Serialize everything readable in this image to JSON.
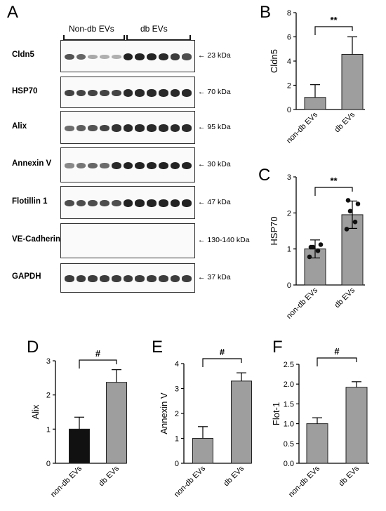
{
  "panel_letters": [
    "A",
    "B",
    "C",
    "D",
    "E",
    "F"
  ],
  "western_blot": {
    "group_labels": [
      "Non-db EVs",
      "db EVs"
    ],
    "rows": [
      {
        "label": "Cldn5",
        "kda": "23 kDa",
        "intensity": [
          0.65,
          0.55,
          0.15,
          0.1,
          0.1,
          0.95,
          0.95,
          0.95,
          0.9,
          0.8,
          0.7
        ]
      },
      {
        "label": "HSP70",
        "kda": "70 kDa",
        "intensity": [
          0.75,
          0.75,
          0.75,
          0.75,
          0.75,
          0.9,
          0.9,
          0.9,
          0.9,
          0.9,
          0.9
        ]
      },
      {
        "label": "Alix",
        "kda": "95 kDa",
        "intensity": [
          0.5,
          0.6,
          0.65,
          0.75,
          0.85,
          0.9,
          0.9,
          0.9,
          0.9,
          0.9,
          0.9
        ]
      },
      {
        "label": "Annexin V",
        "kda": "30 kDa",
        "intensity": [
          0.35,
          0.45,
          0.55,
          0.5,
          0.9,
          0.95,
          0.95,
          0.95,
          0.95,
          0.95,
          0.95
        ]
      },
      {
        "label": "Flotillin 1",
        "kda": "47 kDa",
        "intensity": [
          0.7,
          0.7,
          0.7,
          0.7,
          0.7,
          0.95,
          0.95,
          0.95,
          0.95,
          0.95,
          0.95
        ]
      },
      {
        "label": "VE-Cadherin",
        "kda": "130-140 kDa",
        "intensity": [
          0,
          0,
          0,
          0,
          0,
          0,
          0,
          0,
          0,
          0,
          0
        ]
      },
      {
        "label": "GAPDH",
        "kda": "37 kDa",
        "intensity": [
          0.8,
          0.8,
          0.8,
          0.8,
          0.8,
          0.8,
          0.8,
          0.8,
          0.8,
          0.8,
          0.8
        ]
      }
    ]
  },
  "colors": {
    "grey_bar": "#9e9e9e",
    "black_bar": "#111111",
    "dot": "#111111"
  },
  "chart_data": [
    {
      "panel": "B",
      "type": "bar",
      "categories": [
        "non-db EVs",
        "db EVs"
      ],
      "values": [
        1.0,
        4.55
      ],
      "errors": [
        1.05,
        1.45
      ],
      "colors": [
        "#9e9e9e",
        "#9e9e9e"
      ],
      "ylabel": "Cldn5",
      "ylim": [
        0,
        8
      ],
      "yticks": [
        "0",
        "2",
        "4",
        "6",
        "8"
      ],
      "significance": "**",
      "points": []
    },
    {
      "panel": "C",
      "type": "bar",
      "categories": [
        "non-db EVs",
        "db EVs"
      ],
      "values": [
        1.0,
        1.95
      ],
      "errors": [
        0.25,
        0.38
      ],
      "colors": [
        "#9e9e9e",
        "#9e9e9e"
      ],
      "ylabel": "HSP70",
      "ylim": [
        0,
        3
      ],
      "yticks": [
        "0",
        "1",
        "2",
        "3"
      ],
      "significance": "**",
      "points": [
        [
          0.78,
          0.95,
          1.05,
          1.12,
          1.05
        ],
        [
          1.55,
          1.75,
          2.05,
          2.25,
          2.35
        ]
      ]
    },
    {
      "panel": "D",
      "type": "bar",
      "categories": [
        "non-db EVs",
        "db EVs"
      ],
      "values": [
        1.0,
        2.37
      ],
      "errors": [
        0.35,
        0.37
      ],
      "colors": [
        "#111111",
        "#9e9e9e"
      ],
      "ylabel": "Alix",
      "ylim": [
        0,
        3
      ],
      "yticks": [
        "0",
        "1",
        "2",
        "3"
      ],
      "significance": "#",
      "points": []
    },
    {
      "panel": "E",
      "type": "bar",
      "categories": [
        "non-db EVs",
        "db EVs"
      ],
      "values": [
        1.0,
        3.3
      ],
      "errors": [
        0.47,
        0.33
      ],
      "colors": [
        "#9e9e9e",
        "#9e9e9e"
      ],
      "ylabel": "Annexin V",
      "ylim": [
        0,
        4
      ],
      "yticks": [
        "0",
        "1",
        "2",
        "3",
        "4"
      ],
      "significance": "#",
      "points": []
    },
    {
      "panel": "F",
      "type": "bar",
      "categories": [
        "non-db EVs",
        "db EVs"
      ],
      "values": [
        1.0,
        1.92
      ],
      "errors": [
        0.15,
        0.14
      ],
      "colors": [
        "#9e9e9e",
        "#9e9e9e"
      ],
      "ylabel": "Flot-1",
      "ylim": [
        0,
        2.5
      ],
      "yticks": [
        "0.0",
        "0.5",
        "1.0",
        "1.5",
        "2.0",
        "2.5"
      ],
      "significance": "#",
      "points": []
    }
  ]
}
